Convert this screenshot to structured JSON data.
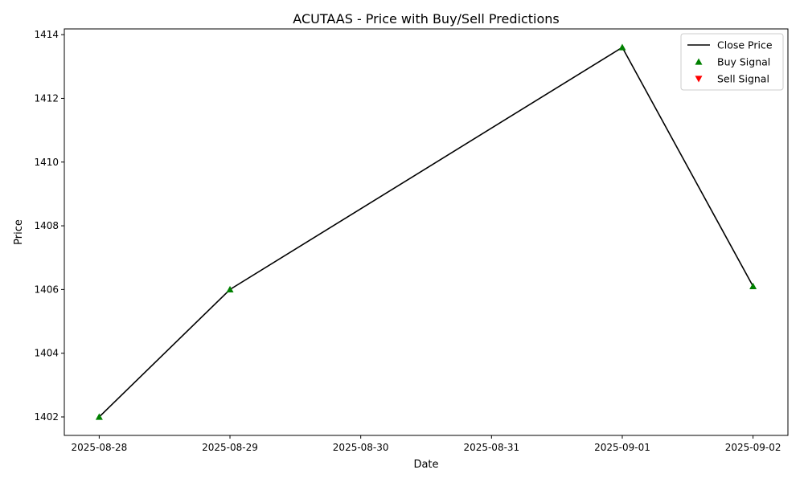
{
  "chart_data": {
    "type": "line",
    "title": "ACUTAAS - Price with Buy/Sell Predictions",
    "xlabel": "Date",
    "ylabel": "Price",
    "x_ticks": [
      "2025-08-28",
      "2025-08-29",
      "2025-08-30",
      "2025-08-31",
      "2025-09-01",
      "2025-09-02"
    ],
    "y_ticks": [
      1402,
      1404,
      1406,
      1408,
      1410,
      1412,
      1414
    ],
    "xlim": [
      "2025-08-27 17:36",
      "2025-09-02 06:24"
    ],
    "ylim": [
      1401.42,
      1414.18
    ],
    "grid": false,
    "legend_position": "top-right",
    "series": [
      {
        "name": "Close Price",
        "kind": "line",
        "color": "#000000",
        "points": [
          {
            "x": "2025-08-28",
            "y": 1402.0
          },
          {
            "x": "2025-08-29",
            "y": 1406.0
          },
          {
            "x": "2025-09-01",
            "y": 1413.6
          },
          {
            "x": "2025-09-02",
            "y": 1406.1
          }
        ]
      },
      {
        "name": "Buy Signal",
        "kind": "marker",
        "marker": "triangle-up",
        "color": "#008000",
        "points": [
          {
            "x": "2025-08-28",
            "y": 1402.0
          },
          {
            "x": "2025-08-29",
            "y": 1406.0
          },
          {
            "x": "2025-09-01",
            "y": 1413.6
          },
          {
            "x": "2025-09-02",
            "y": 1406.1
          }
        ]
      },
      {
        "name": "Sell Signal",
        "kind": "marker",
        "marker": "triangle-down",
        "color": "#ff0000",
        "points": []
      }
    ]
  }
}
